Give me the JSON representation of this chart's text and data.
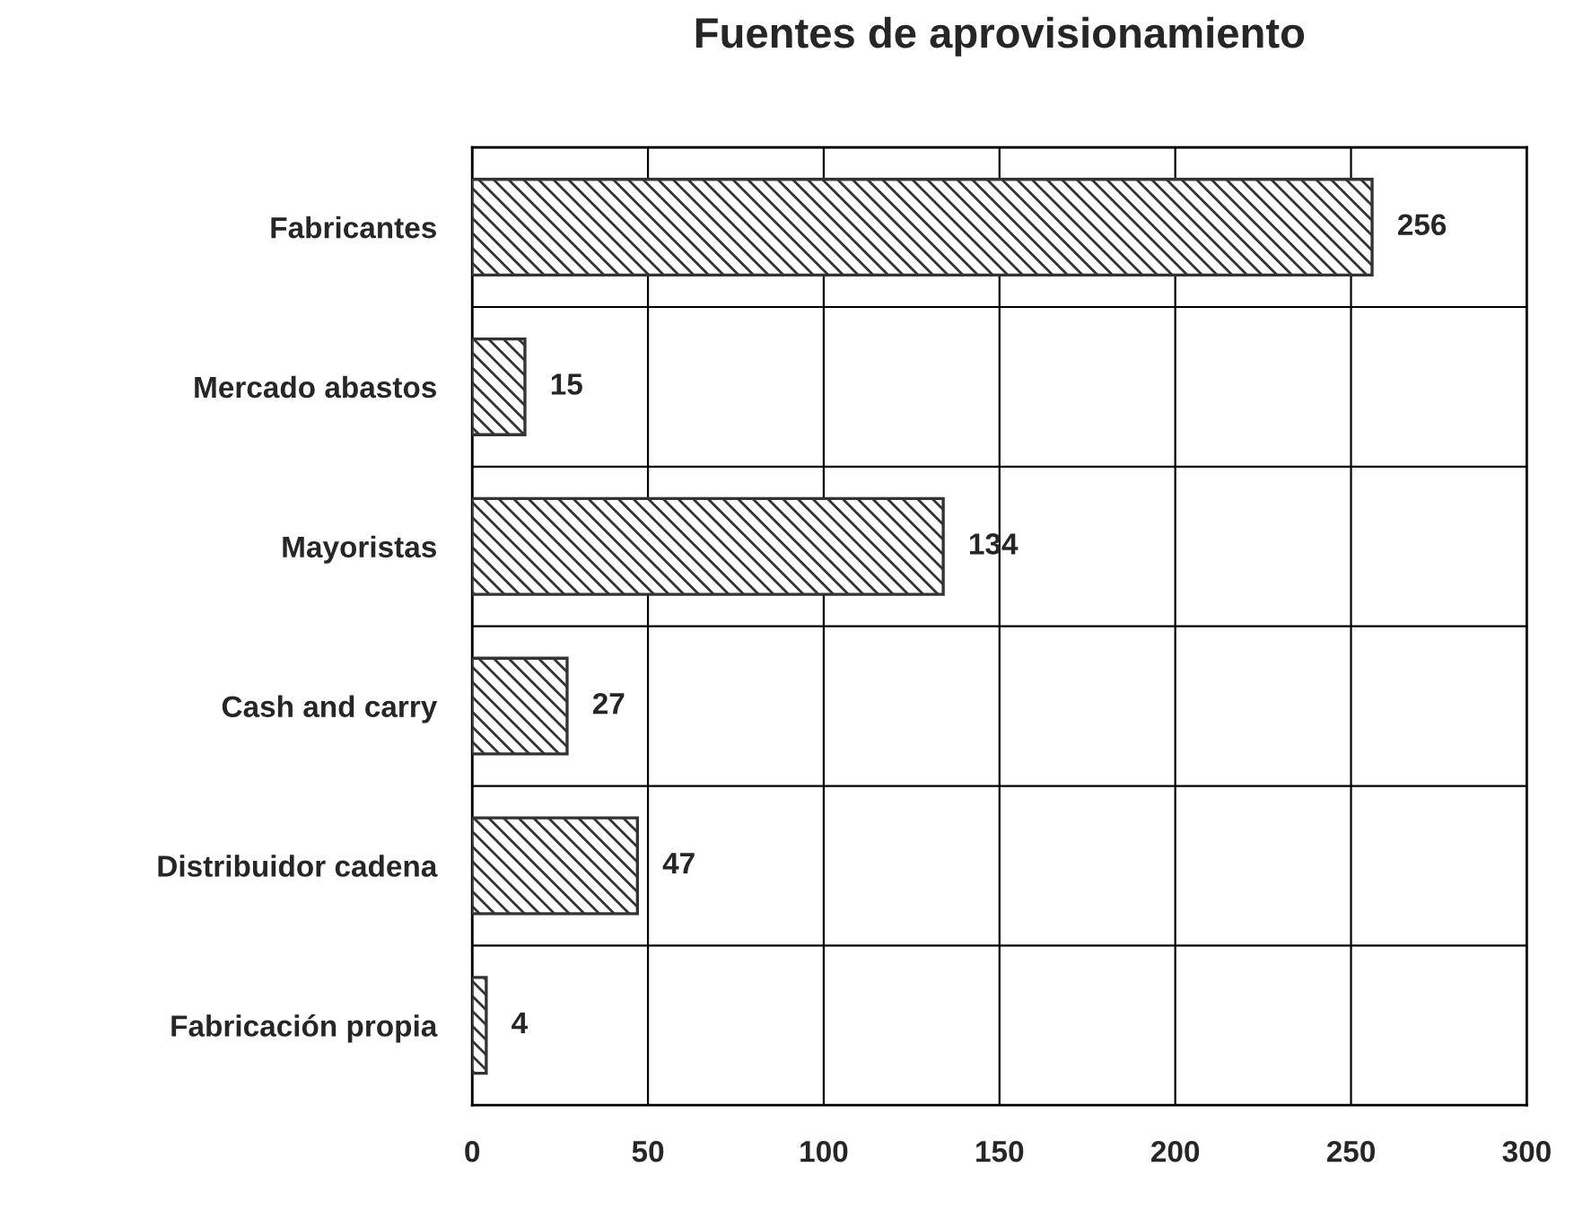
{
  "chart_data": {
    "type": "bar",
    "orientation": "horizontal",
    "title": "Fuentes de aprovisionamiento",
    "categories": [
      "Fabricantes",
      "Mercado abastos",
      "Mayoristas",
      "Cash and carry",
      "Distribuidor cadena",
      "Fabricación propia"
    ],
    "values": [
      256,
      15,
      134,
      27,
      47,
      4
    ],
    "color": "#333333",
    "xlim": [
      0,
      300
    ],
    "xticks": [
      0,
      50,
      100,
      150,
      200,
      250,
      300
    ],
    "grid": true,
    "data_labels": true
  }
}
